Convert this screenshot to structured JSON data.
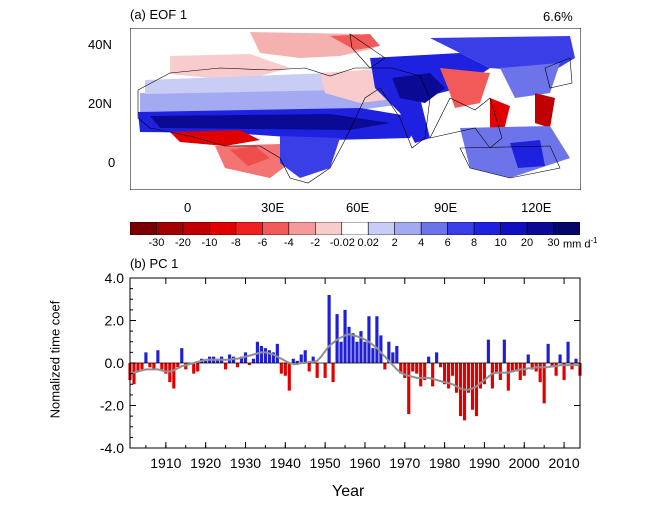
{
  "map_panel": {
    "label": "(a) EOF 1",
    "percent": "6.6%",
    "lat_ticks": [
      "40N",
      "20N",
      "0"
    ],
    "lon_ticks": [
      "0",
      "30E",
      "60E",
      "90E",
      "120E"
    ]
  },
  "colorbar": {
    "labels": [
      "-30",
      "-20",
      "-10",
      "-8",
      "-6",
      "-4",
      "-2",
      "-0.02",
      "0.02",
      "2",
      "4",
      "6",
      "8",
      "10",
      "20",
      "30"
    ],
    "unit": "mm d",
    "unit_sup": "-1",
    "colors": [
      "#7a0000",
      "#a30000",
      "#c00000",
      "#e00000",
      "#f02020",
      "#f25a5a",
      "#f59a9a",
      "#f8cccc",
      "#ffffff",
      "#c9cdf6",
      "#a3aaf1",
      "#6d74ea",
      "#3a3ee6",
      "#1e22e0",
      "#1010c0",
      "#0a0a95",
      "#06066a"
    ]
  },
  "chart_data": {
    "type": "bar",
    "label": "(b) PC 1",
    "ylabel": "Nomalized time coef",
    "xlabel": "Year",
    "ylim": [
      -4.0,
      4.0
    ],
    "xlim": [
      1901,
      2014
    ],
    "yticks": [
      "4.0",
      "2.0",
      "0.0",
      "-2.0",
      "-4.0"
    ],
    "xticks": [
      "1910",
      "1920",
      "1930",
      "1940",
      "1950",
      "1960",
      "1970",
      "1980",
      "1990",
      "2000",
      "2010"
    ],
    "positive_color": "#1f1fd6",
    "negative_color": "#e00000",
    "smooth_color": "#909090",
    "years": [
      1901,
      1902,
      1903,
      1904,
      1905,
      1906,
      1907,
      1908,
      1909,
      1910,
      1911,
      1912,
      1913,
      1914,
      1915,
      1916,
      1917,
      1918,
      1919,
      1920,
      1921,
      1922,
      1923,
      1924,
      1925,
      1926,
      1927,
      1928,
      1929,
      1930,
      1931,
      1932,
      1933,
      1934,
      1935,
      1936,
      1937,
      1938,
      1939,
      1940,
      1941,
      1942,
      1943,
      1944,
      1945,
      1946,
      1947,
      1948,
      1949,
      1950,
      1951,
      1952,
      1953,
      1954,
      1955,
      1956,
      1957,
      1958,
      1959,
      1960,
      1961,
      1962,
      1963,
      1964,
      1965,
      1966,
      1967,
      1968,
      1969,
      1970,
      1971,
      1972,
      1973,
      1974,
      1975,
      1976,
      1977,
      1978,
      1979,
      1980,
      1981,
      1982,
      1983,
      1984,
      1985,
      1986,
      1987,
      1988,
      1989,
      1990,
      1991,
      1992,
      1993,
      1994,
      1995,
      1996,
      1997,
      1998,
      1999,
      2000,
      2001,
      2002,
      2003,
      2004,
      2005,
      2006,
      2007,
      2008,
      2009,
      2010,
      2011,
      2012,
      2013,
      2014
    ],
    "values": [
      -0.8,
      -1.0,
      -0.4,
      -0.3,
      0.5,
      -0.2,
      -0.3,
      0.6,
      -0.3,
      -0.5,
      -0.9,
      -1.2,
      -0.2,
      0.7,
      -0.3,
      0.0,
      -0.5,
      -0.4,
      0.2,
      0.1,
      0.3,
      0.3,
      0.2,
      0.3,
      -0.3,
      0.4,
      0.3,
      -0.2,
      0.3,
      0.5,
      -0.1,
      0.2,
      1.0,
      0.8,
      0.7,
      0.6,
      0.5,
      0.9,
      -0.5,
      -0.6,
      -1.3,
      0.2,
      0.1,
      0.4,
      0.6,
      -0.4,
      0.3,
      -0.7,
      0.0,
      -0.7,
      3.2,
      -0.9,
      2.3,
      1.0,
      2.5,
      1.7,
      1.4,
      1.0,
      1.5,
      1.0,
      2.2,
      0.7,
      2.2,
      1.3,
      -0.3,
      1.0,
      0.5,
      0.8,
      -0.5,
      -0.7,
      -2.4,
      -0.4,
      -0.5,
      -1.1,
      -0.8,
      0.3,
      -1.1,
      0.5,
      -0.2,
      -1.0,
      -1.2,
      -0.6,
      -1.4,
      -2.5,
      -2.7,
      -1.4,
      -2.2,
      -2.5,
      -1.2,
      -1.0,
      1.1,
      -1.2,
      -0.5,
      -0.8,
      1.1,
      -1.3,
      -0.4,
      -0.4,
      -0.8,
      -0.6,
      0.4,
      -0.3,
      -0.4,
      -0.9,
      -1.9,
      0.9,
      -0.2,
      -0.6,
      0.4,
      -0.8,
      1.0,
      -0.3,
      0.2,
      -0.6
    ],
    "smooth": [
      -0.45,
      -0.45,
      -0.4,
      -0.35,
      -0.3,
      -0.3,
      -0.3,
      -0.3,
      -0.35,
      -0.4,
      -0.4,
      -0.35,
      -0.25,
      -0.15,
      -0.1,
      -0.05,
      0.0,
      0.05,
      0.1,
      0.15,
      0.15,
      0.15,
      0.15,
      0.15,
      0.15,
      0.15,
      0.2,
      0.2,
      0.25,
      0.3,
      0.35,
      0.4,
      0.45,
      0.5,
      0.5,
      0.45,
      0.4,
      0.3,
      0.2,
      0.1,
      0.0,
      -0.05,
      -0.05,
      0.0,
      0.0,
      0.05,
      0.05,
      0.1,
      0.3,
      0.55,
      0.8,
      0.95,
      1.1,
      1.2,
      1.3,
      1.35,
      1.3,
      1.25,
      1.2,
      1.1,
      1.0,
      0.85,
      0.7,
      0.5,
      0.3,
      0.1,
      -0.1,
      -0.3,
      -0.45,
      -0.55,
      -0.6,
      -0.65,
      -0.7,
      -0.7,
      -0.7,
      -0.7,
      -0.75,
      -0.8,
      -0.85,
      -0.9,
      -0.95,
      -1.0,
      -1.1,
      -1.2,
      -1.25,
      -1.25,
      -1.2,
      -1.1,
      -0.95,
      -0.8,
      -0.65,
      -0.5,
      -0.45,
      -0.45,
      -0.45,
      -0.45,
      -0.4,
      -0.35,
      -0.3,
      -0.3,
      -0.25,
      -0.25,
      -0.2,
      -0.2,
      -0.2,
      -0.2,
      -0.15,
      -0.15,
      -0.1,
      -0.1,
      -0.1,
      -0.1,
      -0.1,
      -0.1
    ]
  }
}
